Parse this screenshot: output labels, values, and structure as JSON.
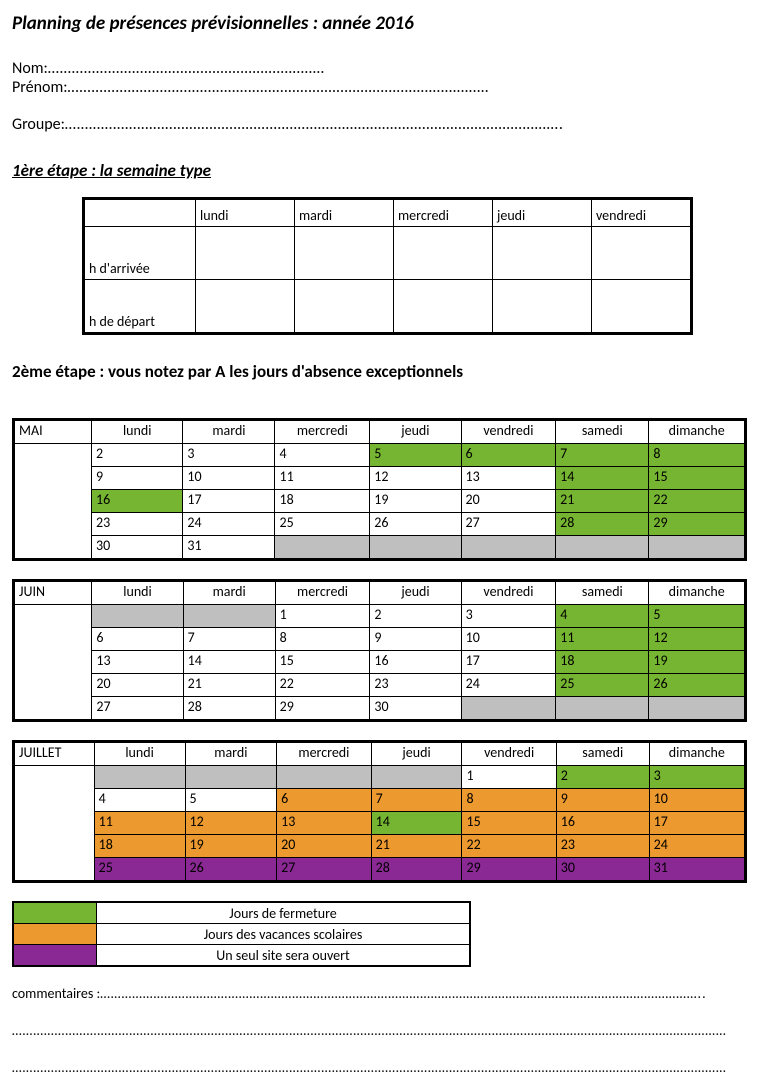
{
  "title": "Planning de présences prévisionnelles : année 2016",
  "fields": {
    "nom_label": "Nom:",
    "prenom_label": "Prénom:",
    "groupe_label": "Groupe:",
    "dots_short": "……………………………………………………………",
    "dots_med": "……………………………………………………………………………………………",
    "dots_long": "……………………………………………………………………………………………………………."
  },
  "step1": {
    "heading": "1ère étape : la semaine type ",
    "rows": [
      "h d'arrivée",
      "h de départ"
    ],
    "days": [
      "lundi",
      "mardi",
      "mercredi",
      "jeudi",
      "vendredi"
    ]
  },
  "step2": {
    "heading": "2ème étape : vous notez par A les  jours d'absence exceptionnels",
    "day_headers": [
      "lundi",
      "mardi",
      "mercredi",
      "jeudi",
      "vendredi",
      "samedi",
      "dimanche"
    ],
    "colors": {
      "w": "#ffffff",
      "g": "#76b531",
      "o": "#ec9a2f",
      "p": "#8a2894",
      "gr": "#bfbfbf"
    },
    "months": [
      {
        "name": "MAI",
        "rows": [
          [
            [
              "2",
              "w"
            ],
            [
              "3",
              "w"
            ],
            [
              "4",
              "w"
            ],
            [
              "5",
              "g"
            ],
            [
              "6",
              "g"
            ],
            [
              "7",
              "g"
            ],
            [
              "8",
              "g"
            ]
          ],
          [
            [
              "9",
              "w"
            ],
            [
              "10",
              "w"
            ],
            [
              "11",
              "w"
            ],
            [
              "12",
              "w"
            ],
            [
              "13",
              "w"
            ],
            [
              "14",
              "g"
            ],
            [
              "15",
              "g"
            ]
          ],
          [
            [
              "16",
              "g"
            ],
            [
              "17",
              "w"
            ],
            [
              "18",
              "w"
            ],
            [
              "19",
              "w"
            ],
            [
              "20",
              "w"
            ],
            [
              "21",
              "g"
            ],
            [
              "22",
              "g"
            ]
          ],
          [
            [
              "23",
              "w"
            ],
            [
              "24",
              "w"
            ],
            [
              "25",
              "w"
            ],
            [
              "26",
              "w"
            ],
            [
              "27",
              "w"
            ],
            [
              "28",
              "g"
            ],
            [
              "29",
              "g"
            ]
          ],
          [
            [
              "30",
              "w"
            ],
            [
              "31",
              "w"
            ],
            [
              "",
              "gr"
            ],
            [
              "",
              "gr"
            ],
            [
              "",
              "gr"
            ],
            [
              "",
              "gr"
            ],
            [
              "",
              "gr"
            ]
          ]
        ]
      },
      {
        "name": "JUIN",
        "rows": [
          [
            [
              "",
              "gr"
            ],
            [
              "",
              "gr"
            ],
            [
              "1",
              "w"
            ],
            [
              "2",
              "w"
            ],
            [
              "3",
              "w"
            ],
            [
              "4",
              "g"
            ],
            [
              "5",
              "g"
            ]
          ],
          [
            [
              "6",
              "w"
            ],
            [
              "7",
              "w"
            ],
            [
              "8",
              "w"
            ],
            [
              "9",
              "w"
            ],
            [
              "10",
              "w"
            ],
            [
              "11",
              "g"
            ],
            [
              "12",
              "g"
            ]
          ],
          [
            [
              "13",
              "w"
            ],
            [
              "14",
              "w"
            ],
            [
              "15",
              "w"
            ],
            [
              "16",
              "w"
            ],
            [
              "17",
              "w"
            ],
            [
              "18",
              "g"
            ],
            [
              "19",
              "g"
            ]
          ],
          [
            [
              "20",
              "w"
            ],
            [
              "21",
              "w"
            ],
            [
              "22",
              "w"
            ],
            [
              "23",
              "w"
            ],
            [
              "24",
              "w"
            ],
            [
              "25",
              "g"
            ],
            [
              "26",
              "g"
            ]
          ],
          [
            [
              "27",
              "w"
            ],
            [
              "28",
              "w"
            ],
            [
              "29",
              "w"
            ],
            [
              "30",
              "w"
            ],
            [
              "",
              "gr"
            ],
            [
              "",
              "gr"
            ],
            [
              "",
              "gr"
            ]
          ]
        ]
      },
      {
        "name": "JUILLET",
        "rows": [
          [
            [
              "",
              "gr"
            ],
            [
              "",
              "gr"
            ],
            [
              "",
              "gr"
            ],
            [
              "",
              "gr"
            ],
            [
              "1",
              "w"
            ],
            [
              "2",
              "g"
            ],
            [
              "3",
              "g"
            ]
          ],
          [
            [
              "4",
              "w"
            ],
            [
              "5",
              "w"
            ],
            [
              "6",
              "o"
            ],
            [
              "7",
              "o"
            ],
            [
              "8",
              "o"
            ],
            [
              "9",
              "o"
            ],
            [
              "10",
              "o"
            ]
          ],
          [
            [
              "11",
              "o"
            ],
            [
              "12",
              "o"
            ],
            [
              "13",
              "o"
            ],
            [
              "14",
              "g"
            ],
            [
              "15",
              "o"
            ],
            [
              "16",
              "o"
            ],
            [
              "17",
              "o"
            ]
          ],
          [
            [
              "18",
              "o"
            ],
            [
              "19",
              "o"
            ],
            [
              "20",
              "o"
            ],
            [
              "21",
              "o"
            ],
            [
              "22",
              "o"
            ],
            [
              "23",
              "o"
            ],
            [
              "24",
              "o"
            ]
          ],
          [
            [
              "25",
              "p"
            ],
            [
              "26",
              "p"
            ],
            [
              "27",
              "p"
            ],
            [
              "28",
              "p"
            ],
            [
              "29",
              "p"
            ],
            [
              "30",
              "p"
            ],
            [
              "31",
              "p"
            ]
          ]
        ]
      }
    ]
  },
  "legend": [
    {
      "color": "g",
      "label": "Jours de fermeture"
    },
    {
      "color": "o",
      "label": "Jours des vacances scolaires"
    },
    {
      "color": "p",
      "label": "Un seul site sera ouvert"
    }
  ],
  "comments": {
    "label": "commentaires :",
    "dots1": "……………………………………………………………………………………………………………………………………………………..",
    "dots2": "…………………………………………………………………………………………………………………………………………………………………………………",
    "dots3": "…………………………………………………………………………………………………………………………………………………………………………………"
  }
}
